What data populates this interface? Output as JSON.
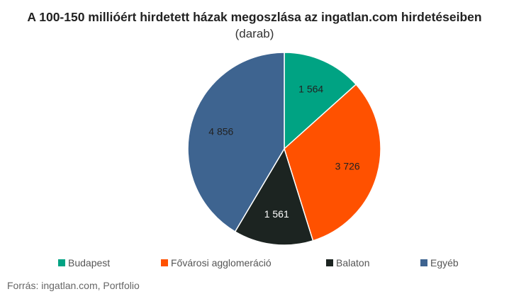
{
  "chart_data": {
    "type": "pie",
    "title": "A 100-150 millióért hirdetett házak megoszlása az ingatlan.com hirdetéseiben",
    "subtitle": "(darab)",
    "categories": [
      "Budapest",
      "Fővárosi agglomeráció",
      "Balaton",
      "Egyéb"
    ],
    "values": [
      1564,
      3726,
      1561,
      4856
    ],
    "labels": [
      "1 564",
      "3 726",
      "1 561",
      "4 856"
    ],
    "colors": [
      "#00a383",
      "#ff5100",
      "#1c2421",
      "#3e6490"
    ],
    "legend_position": "bottom"
  },
  "source": "Forrás: ingatlan.com, Portfolio"
}
